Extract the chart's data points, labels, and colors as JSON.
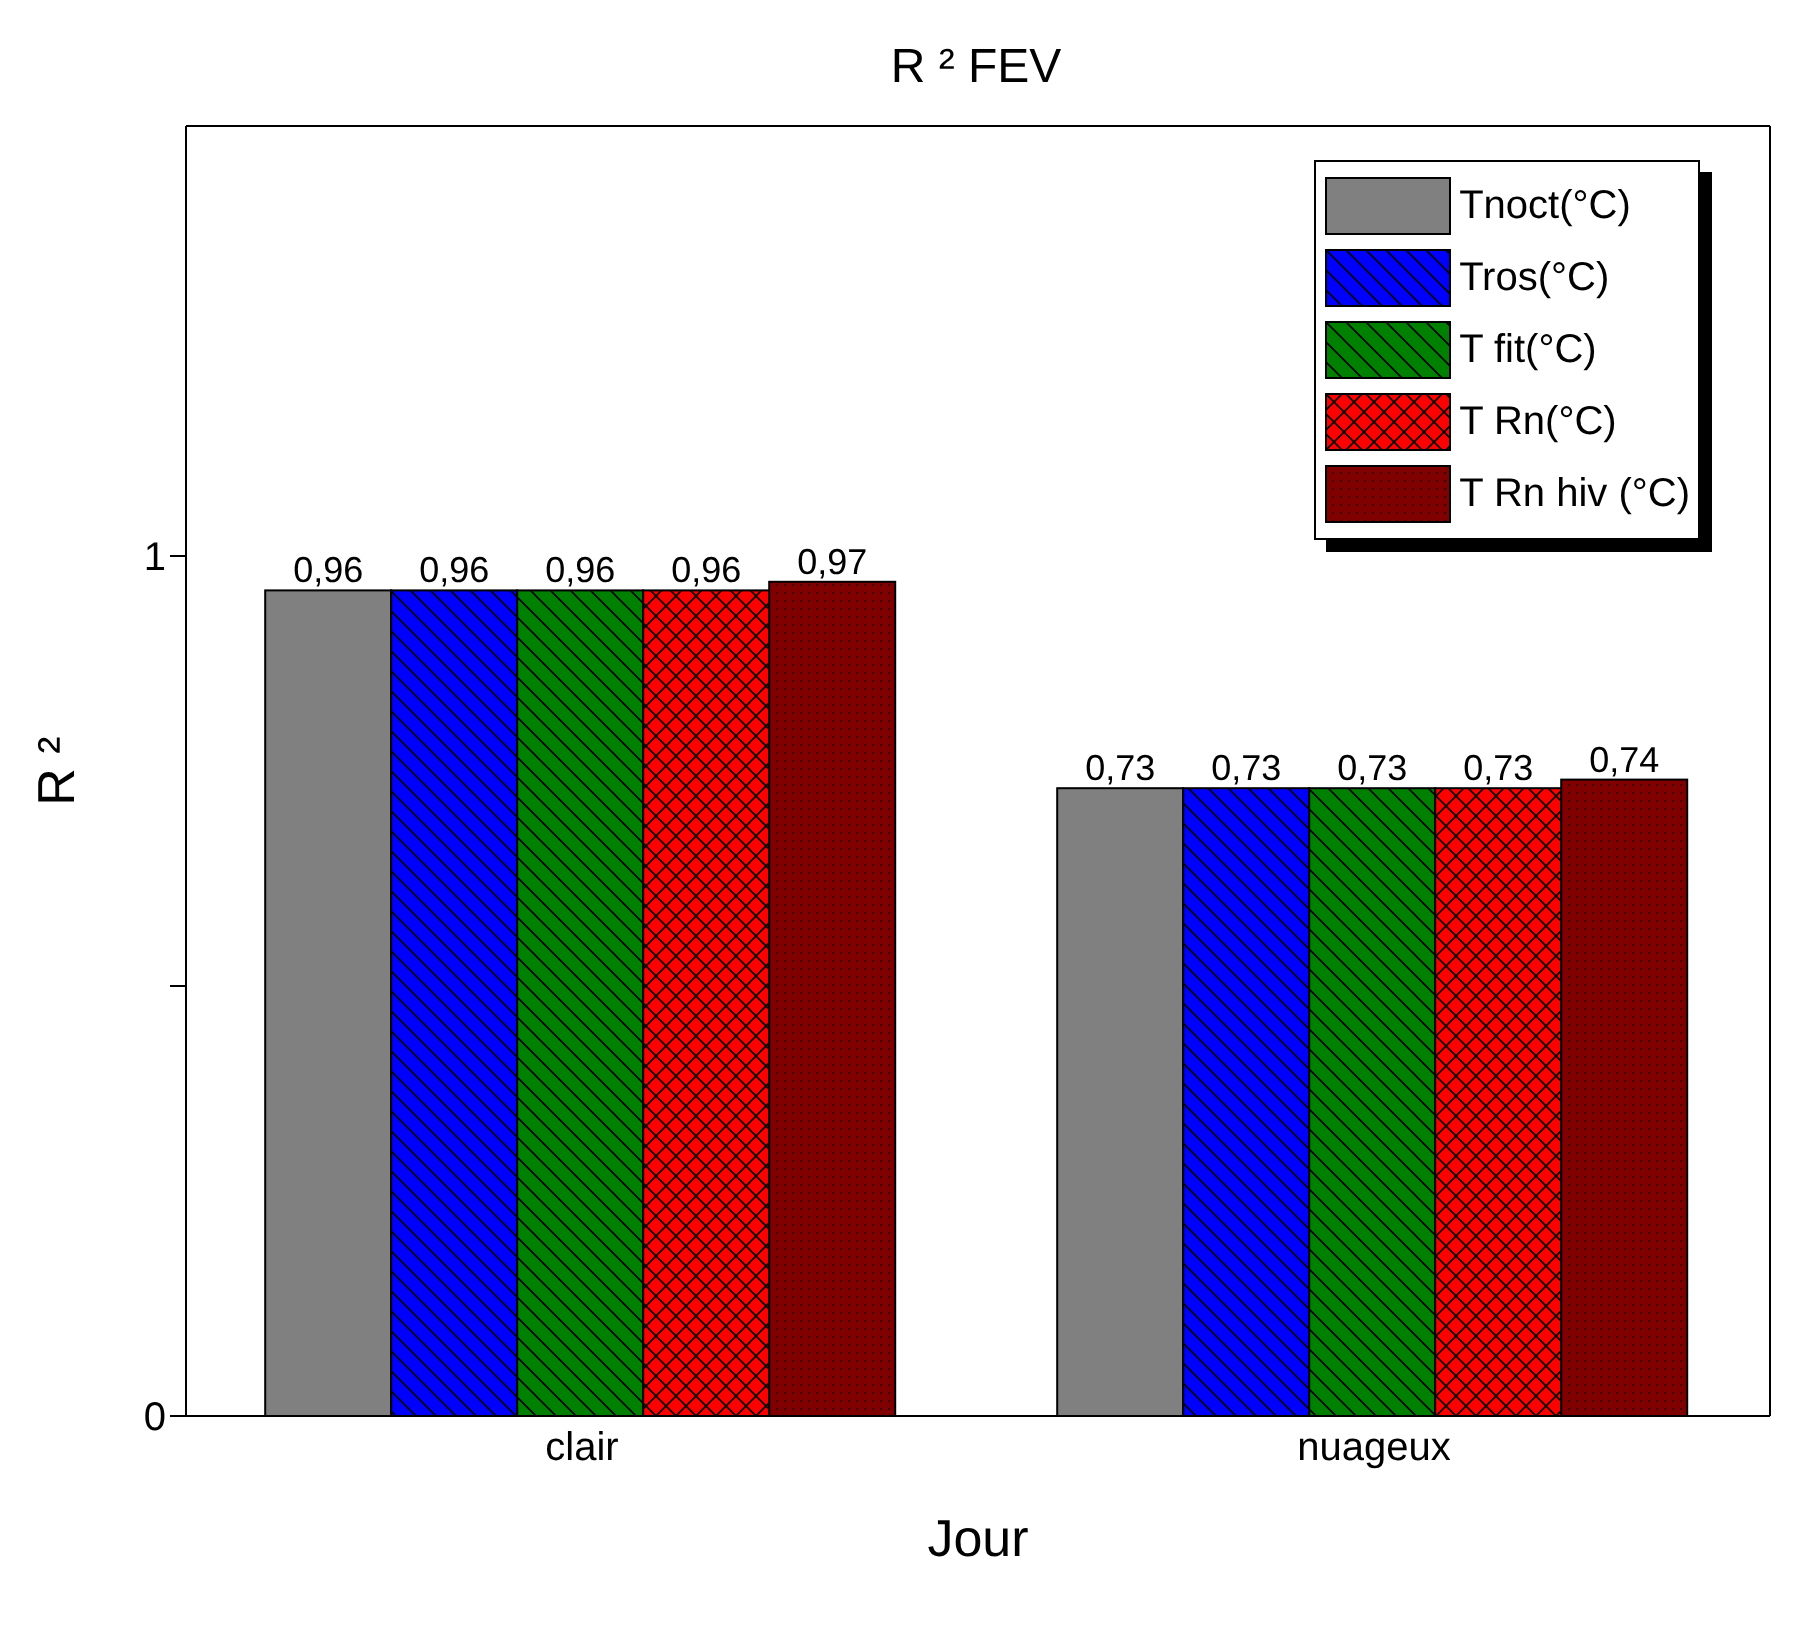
{
  "chart_data": {
    "type": "bar",
    "title": "R ² FEV",
    "xlabel": "Jour",
    "ylabel": "R ²",
    "categories": [
      "clair",
      "nuageux"
    ],
    "series": [
      {
        "name": "Tnoct(°C)",
        "color": "#808080",
        "values": [
          0.96,
          0.73
        ],
        "value_labels": [
          "0,96",
          "0,73"
        ]
      },
      {
        "name": "Tros(°C)",
        "color": "#0000ff",
        "values": [
          0.96,
          0.73
        ],
        "value_labels": [
          "0,96",
          "0,73"
        ]
      },
      {
        "name": "T fit(°C)",
        "color": "#008000",
        "values": [
          0.96,
          0.73
        ],
        "value_labels": [
          "0,96",
          "0,73"
        ]
      },
      {
        "name": "T Rn(°C)",
        "color": "#ff0000",
        "values": [
          0.96,
          0.73
        ],
        "value_labels": [
          "0,96",
          "0,73"
        ]
      },
      {
        "name": "T Rn hiv (°C)",
        "color": "#800000",
        "values": [
          0.97,
          0.74
        ],
        "value_labels": [
          "0,97",
          "0,74"
        ]
      }
    ],
    "ylim": [
      0,
      1.5
    ],
    "yticks": [
      0,
      {
        "value": 0.5,
        "label": null
      },
      1
    ],
    "legend": "top right"
  }
}
